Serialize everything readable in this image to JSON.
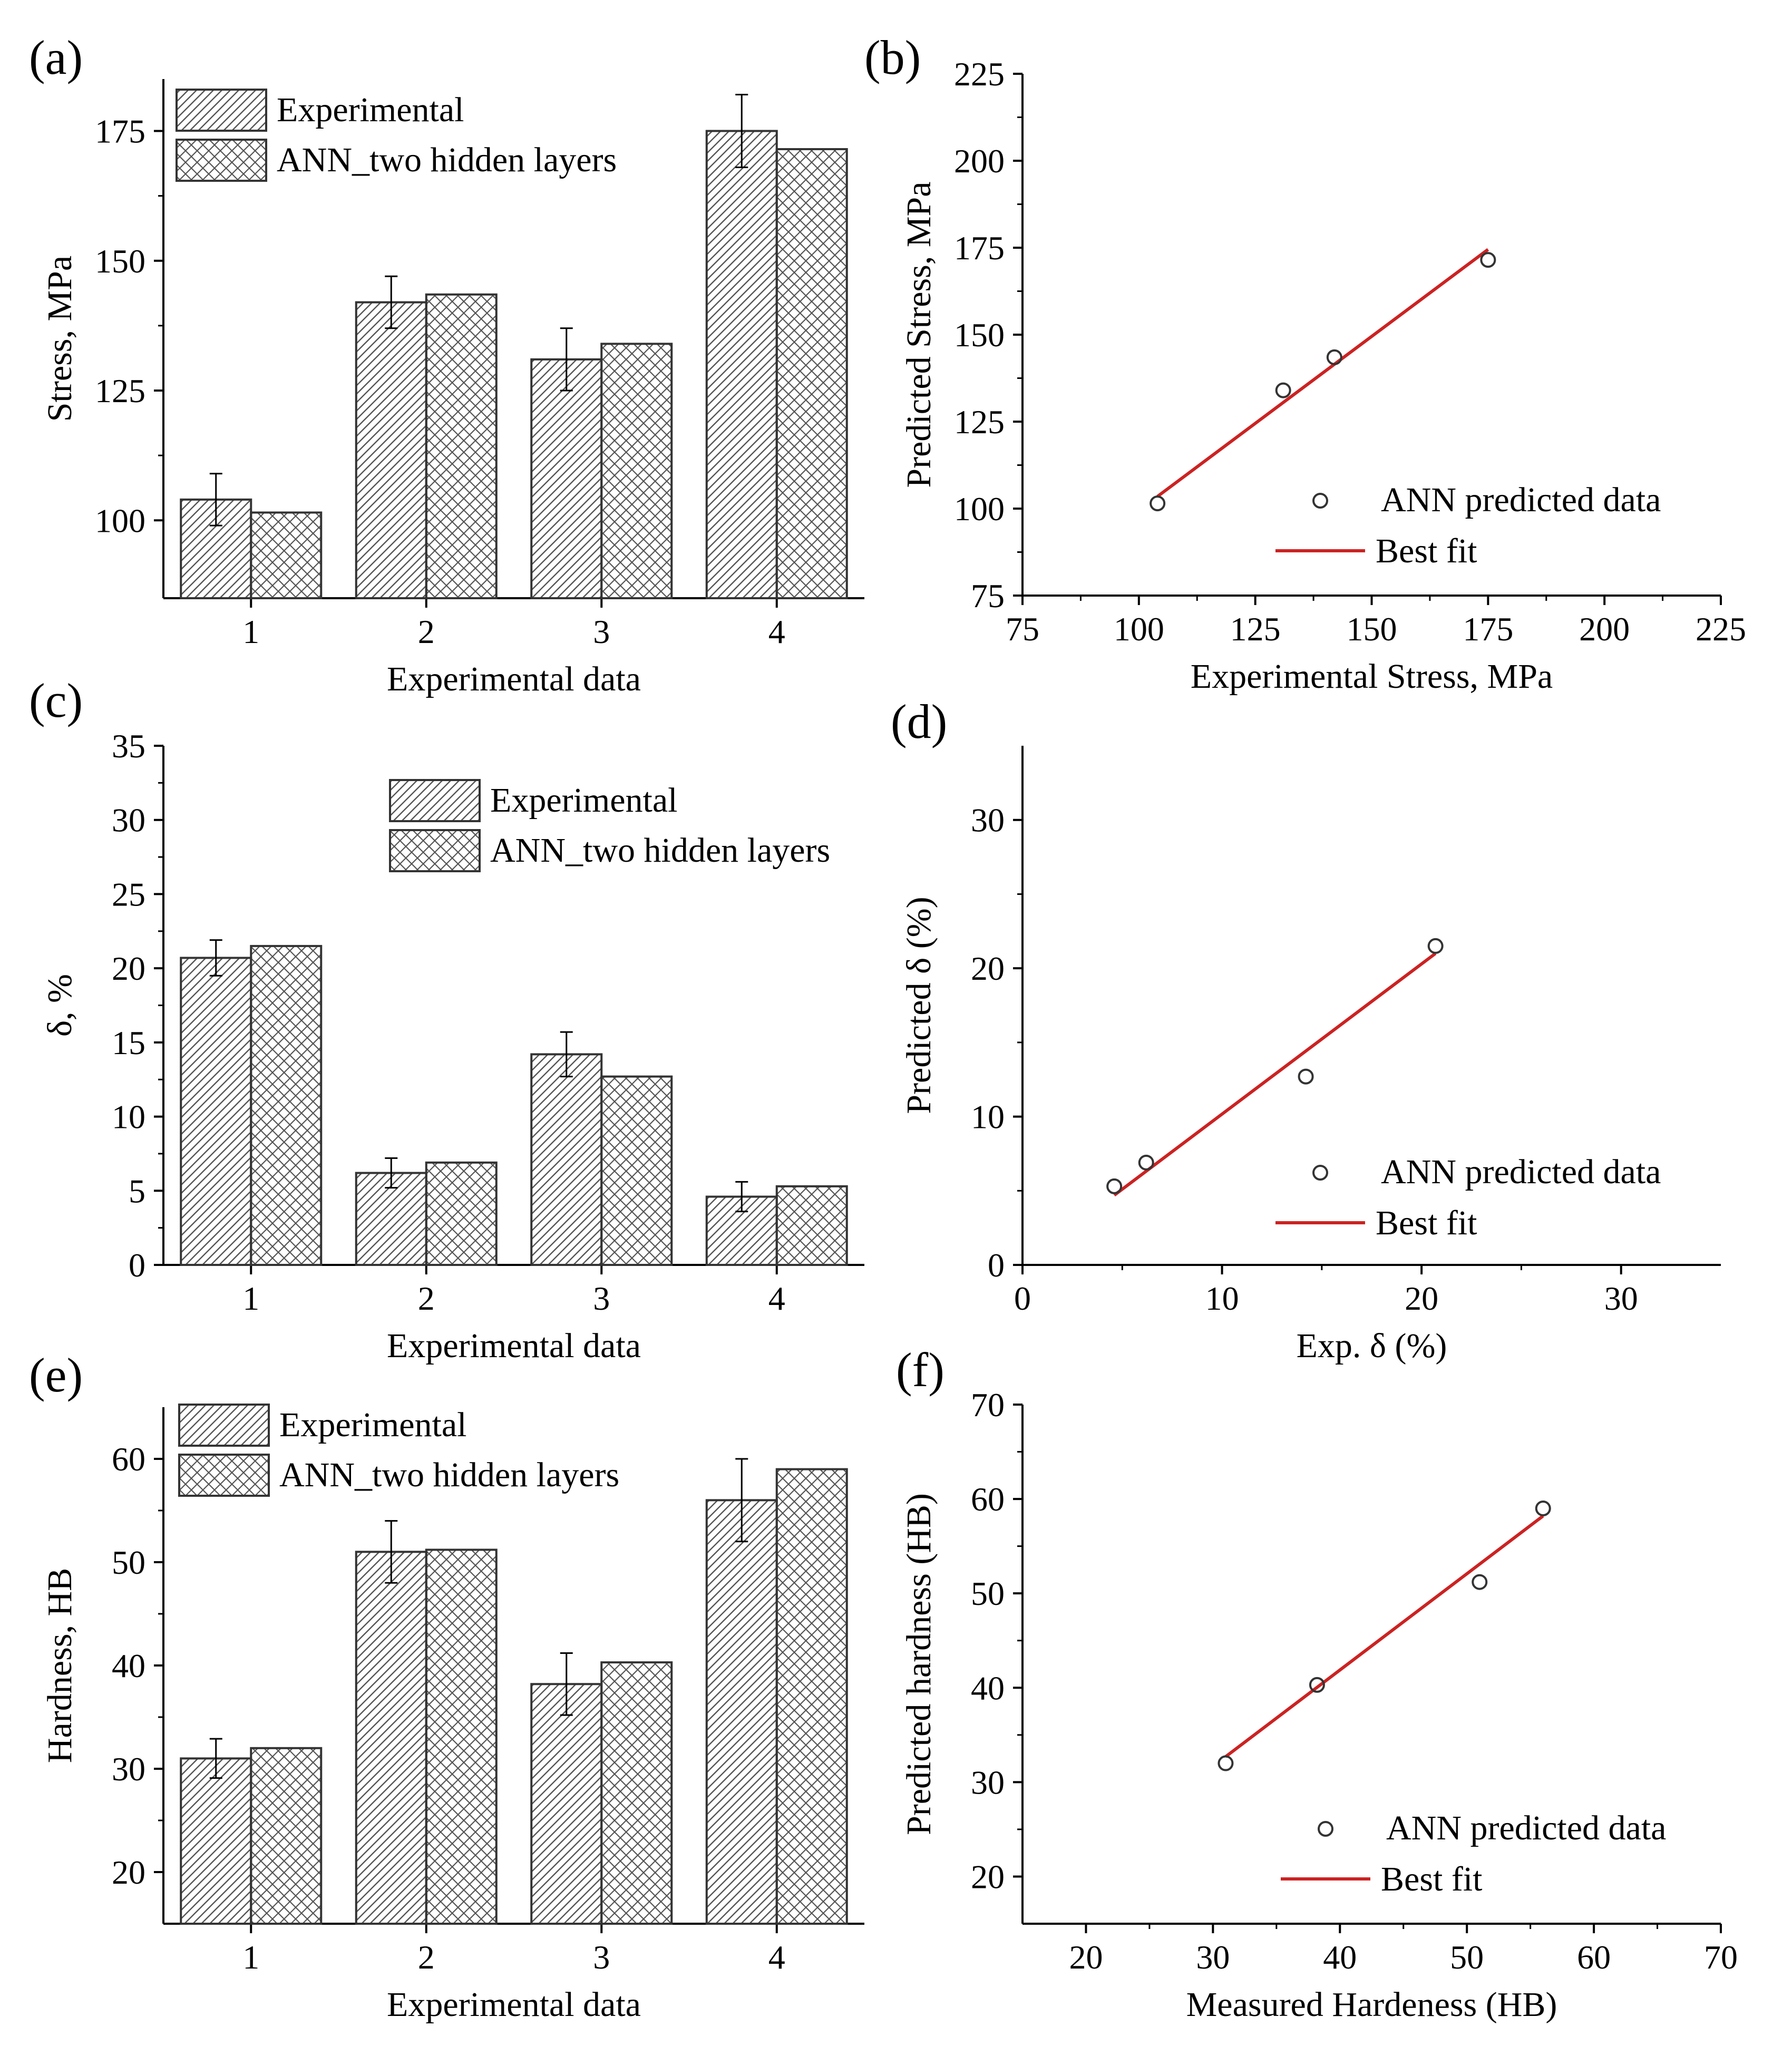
{
  "colors": {
    "axis": "#000000",
    "bar_stroke": "#333333",
    "hatch": "#555555",
    "fit_line": "#cc2222",
    "marker": "#333333"
  },
  "chart_data": [
    {
      "id": "a",
      "panel_label": "(a)",
      "type": "bar",
      "xlabel": "Experimental data",
      "ylabel": "Stress, MPa",
      "categories": [
        "1",
        "2",
        "3",
        "4"
      ],
      "ylim": [
        85,
        185
      ],
      "yticks": [
        100,
        125,
        150,
        175
      ],
      "series": [
        {
          "name": "Experimental",
          "pattern": "diag",
          "values": [
            104,
            142,
            131,
            175
          ],
          "errors": [
            5,
            5,
            6,
            7
          ]
        },
        {
          "name": "ANN_two hidden layers",
          "pattern": "cross",
          "values": [
            101.5,
            143.5,
            134,
            171.5
          ]
        }
      ],
      "legend_position": "top-left"
    },
    {
      "id": "b",
      "panel_label": "(b)",
      "type": "scatter",
      "xlabel": "Experimental Stress, MPa",
      "ylabel": "Predicted Stress, MPa",
      "xlim": [
        75,
        225
      ],
      "ylim": [
        75,
        225
      ],
      "xticks": [
        75,
        100,
        125,
        150,
        175,
        200,
        225
      ],
      "yticks": [
        75,
        100,
        125,
        150,
        175,
        200,
        225
      ],
      "points": {
        "name": "ANN predicted data",
        "x": [
          104,
          131,
          142,
          175
        ],
        "y": [
          101.5,
          134,
          143.5,
          171.5
        ]
      },
      "fit": {
        "name": "Best fit",
        "x": [
          104,
          175
        ],
        "y": [
          103.5,
          174.5
        ]
      },
      "legend_position": "bottom-right"
    },
    {
      "id": "c",
      "panel_label": "(c)",
      "type": "bar",
      "xlabel": "Experimental data",
      "ylabel": "δ, %",
      "categories": [
        "1",
        "2",
        "3",
        "4"
      ],
      "ylim": [
        0,
        35
      ],
      "yticks": [
        0,
        5,
        10,
        15,
        20,
        25,
        30,
        35
      ],
      "series": [
        {
          "name": "Experimental",
          "pattern": "diag",
          "values": [
            20.7,
            6.2,
            14.2,
            4.6
          ],
          "errors": [
            1.2,
            1.0,
            1.5,
            1.0
          ]
        },
        {
          "name": "ANN_two hidden layers",
          "pattern": "cross",
          "values": [
            21.5,
            6.9,
            12.7,
            5.3
          ]
        }
      ],
      "legend_position": "top-right"
    },
    {
      "id": "d",
      "panel_label": "(d)",
      "type": "scatter",
      "xlabel": "Exp. δ (%)",
      "ylabel": "Predicted δ (%)",
      "xlim": [
        0,
        35
      ],
      "ylim": [
        0,
        35
      ],
      "xticks": [
        0,
        10,
        20,
        30
      ],
      "yticks": [
        0,
        10,
        20,
        30
      ],
      "points": {
        "name": "ANN predicted data",
        "x": [
          4.6,
          6.2,
          14.2,
          20.7
        ],
        "y": [
          5.3,
          6.9,
          12.7,
          21.5
        ]
      },
      "fit": {
        "name": "Best fit",
        "x": [
          4.6,
          20.7
        ],
        "y": [
          4.7,
          21.0
        ]
      },
      "legend_position": "bottom-right"
    },
    {
      "id": "e",
      "panel_label": "(e)",
      "type": "bar",
      "xlabel": "Experimental data",
      "ylabel": "Hardness, HB",
      "categories": [
        "1",
        "2",
        "3",
        "4"
      ],
      "ylim": [
        15,
        65
      ],
      "yticks": [
        20,
        30,
        40,
        50,
        60
      ],
      "series": [
        {
          "name": "Experimental",
          "pattern": "diag",
          "values": [
            31,
            51,
            38.2,
            56
          ],
          "errors": [
            1.9,
            3.0,
            3.0,
            4.0
          ]
        },
        {
          "name": "ANN_two hidden layers",
          "pattern": "cross",
          "values": [
            32,
            51.2,
            40.3,
            59
          ]
        }
      ],
      "legend_position": "top-left"
    },
    {
      "id": "f",
      "panel_label": "(f)",
      "type": "scatter",
      "xlabel": "Measured Hardeness (HB)",
      "ylabel": "Predicted hardness (HB)",
      "xlim": [
        15,
        70
      ],
      "ylim": [
        15,
        70
      ],
      "xticks": [
        20,
        30,
        40,
        50,
        60,
        70
      ],
      "yticks": [
        20,
        30,
        40,
        50,
        60,
        70
      ],
      "points": {
        "name": "ANN predicted data",
        "x": [
          31,
          38.2,
          51,
          56
        ],
        "y": [
          32,
          40.3,
          51.2,
          59
        ]
      },
      "fit": {
        "name": "Best fit",
        "x": [
          31,
          56
        ],
        "y": [
          32.7,
          58.2
        ]
      },
      "legend_position": "bottom-right"
    }
  ]
}
